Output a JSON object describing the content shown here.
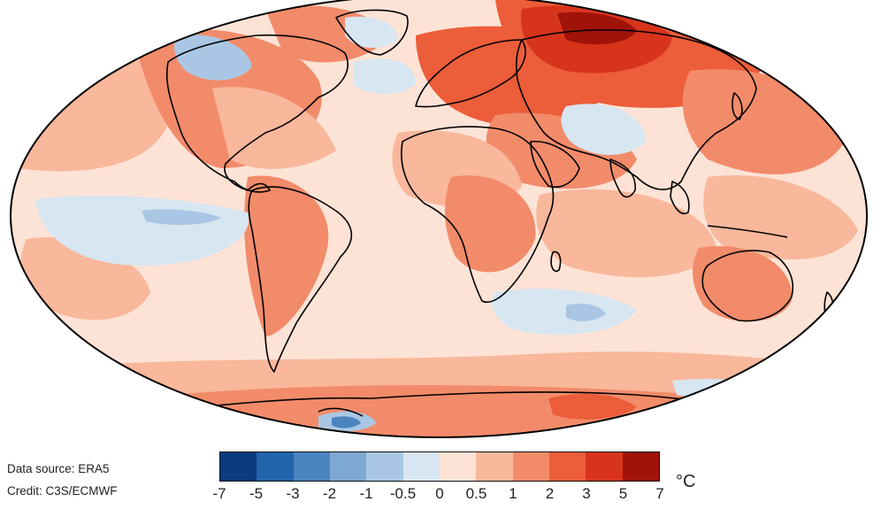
{
  "footer": {
    "data_source": "Data source: ERA5",
    "credit": "Credit: C3S/ECMWF"
  },
  "legend": {
    "unit": "°C",
    "ticks": [
      "-7",
      "-5",
      "-3",
      "-2",
      "-1",
      "-0.5",
      "0",
      "0.5",
      "1",
      "2",
      "3",
      "5",
      "7"
    ],
    "colors": [
      "#0b3c7d",
      "#2164ab",
      "#4a85c0",
      "#7ea8d4",
      "#a9c7e4",
      "#d7e6f1",
      "#fde3d6",
      "#f9b79b",
      "#f28b6a",
      "#ec5d3a",
      "#d8341c",
      "#a01309"
    ]
  },
  "map": {
    "projection": "Robinson",
    "colors": {
      "background": "#fde3d6",
      "warm1": "#f9b79b",
      "warm2": "#f28b6a",
      "warm3": "#ec5d3a",
      "warm4": "#d8341c",
      "warm5": "#a01309",
      "cool1": "#d7e6f1",
      "cool2": "#a9c7e4",
      "cool3": "#7ea8d4",
      "cool4": "#4a85c0",
      "outline": "#000000"
    }
  }
}
